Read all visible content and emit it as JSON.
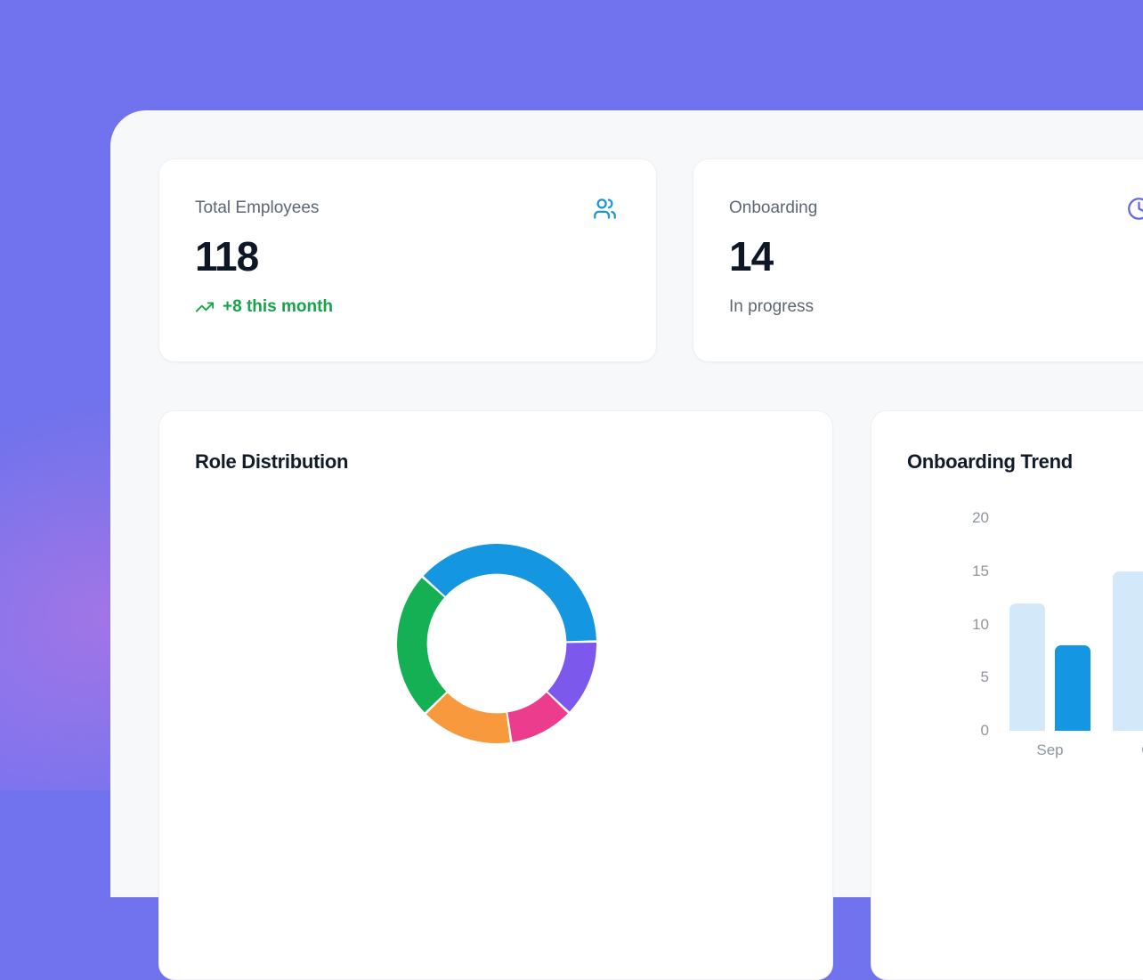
{
  "theme": {
    "background_color": "#7073ed",
    "glow_pink": "rgba(232,120,216,0.38)",
    "panel_color": "#f7f8fa",
    "card_color": "#ffffff",
    "heading_color": "#111b29",
    "label_color": "#5d6673",
    "value_color": "#0e1726",
    "tick_color": "#8e959e",
    "positive_color": "#17a34a"
  },
  "stats": [
    {
      "label": "Total Employees",
      "value": "118",
      "trend": "+8 this month",
      "icon": "users-icon",
      "icon_color": "#1a94df"
    },
    {
      "label": "Onboarding",
      "value": "14",
      "subtitle": "In progress",
      "icon": "clock-icon",
      "icon_color": "#6165ef"
    }
  ],
  "chart_data": [
    {
      "type": "pie",
      "variant": "donut",
      "title": "Role Distribution",
      "start_angle_deg": -48,
      "inner_radius_ratio": 0.7,
      "legend": "none",
      "segments": [
        {
          "name": "blue-segment",
          "color": "#1497e0",
          "percent": 38
        },
        {
          "name": "purple-segment",
          "color": "#7d58ec",
          "percent": 12.5
        },
        {
          "name": "pink-segment",
          "color": "#ec3c8e",
          "percent": 10.5
        },
        {
          "name": "orange-segment",
          "color": "#f8993d",
          "percent": 15
        },
        {
          "name": "green-segment",
          "color": "#16b054",
          "percent": 24
        }
      ]
    },
    {
      "type": "bar",
      "title": "Onboarding Trend",
      "categories": [
        "Sep",
        "Oct"
      ],
      "series": [
        {
          "name": "light-blue-bars",
          "color": "#d3e9fa",
          "values": [
            12,
            15
          ]
        },
        {
          "name": "dark-blue-bars",
          "color": "#1496e2",
          "values": [
            8,
            null
          ]
        }
      ],
      "yticks": [
        0,
        5,
        10,
        15,
        20
      ],
      "ylim": [
        0,
        20
      ],
      "grid": false,
      "legend": "none"
    }
  ]
}
